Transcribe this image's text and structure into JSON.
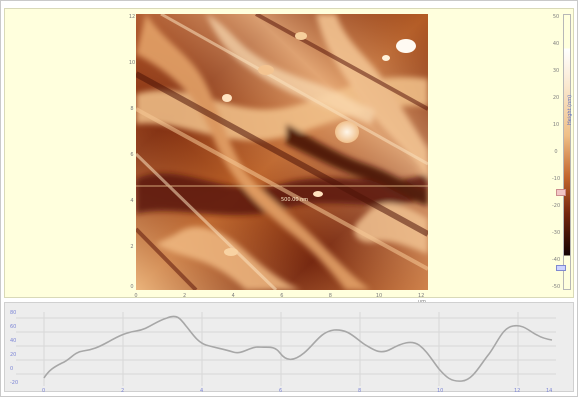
{
  "afm_view": {
    "cursor_label": "500.00 nm",
    "x_axis_ticks": [
      "0",
      "2",
      "4",
      "6",
      "8",
      "10",
      "12 µm"
    ],
    "y_axis_ticks": [
      "12",
      "10",
      "8",
      "6",
      "4",
      "2",
      "0"
    ],
    "colorbar_ticks": [
      "50",
      "40",
      "30",
      "20",
      "10",
      "0",
      "-10",
      "-20",
      "-30",
      "-40",
      "-50"
    ],
    "colorbar_axis_label": "Height (nm)"
  },
  "profile": {
    "y_ticks": [
      "80",
      "60",
      "40",
      "20",
      "0",
      "-20"
    ],
    "x_ticks": [
      "0",
      "2",
      "4",
      "6",
      "8",
      "10",
      "12",
      "14"
    ]
  },
  "colors": {
    "accent": "#b36e3b",
    "profile_line": "#a7a7a7",
    "grid": "#d8d8d8",
    "panel_bg": "#ffffdd",
    "chart_bg": "#ededed"
  }
}
